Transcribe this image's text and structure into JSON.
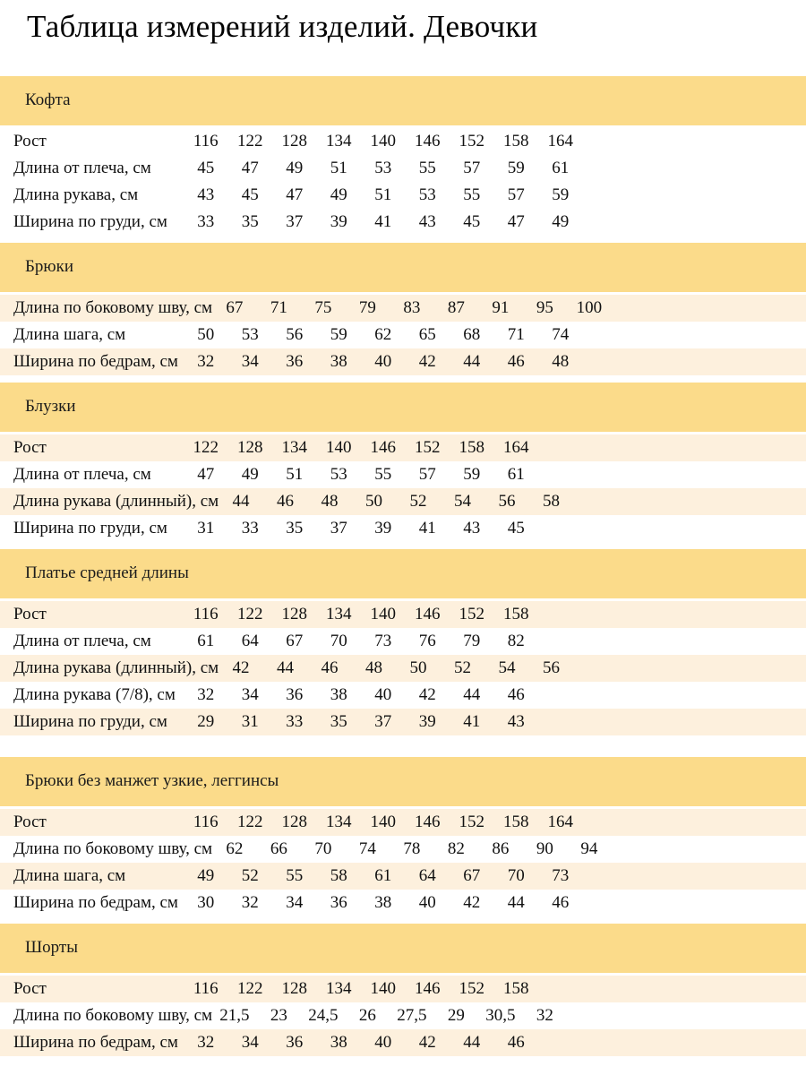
{
  "page_title": "Таблица измерений изделий. Девочки",
  "colors": {
    "section_band": "#FBDB8A",
    "shaded_row": "#FDF0DD",
    "plain_row": "#FFFFFF",
    "text": "#111111"
  },
  "sections": [
    {
      "title": "Кофта",
      "gap_after": false,
      "rows": [
        {
          "label": "Рост",
          "shaded": false,
          "values": [
            "116",
            "122",
            "128",
            "134",
            "140",
            "146",
            "152",
            "158",
            "164"
          ]
        },
        {
          "label": "Длина от плеча, см",
          "shaded": false,
          "values": [
            "45",
            "47",
            "49",
            "51",
            "53",
            "55",
            "57",
            "59",
            "61"
          ]
        },
        {
          "label": "Длина рукава, см",
          "shaded": false,
          "values": [
            "43",
            "45",
            "47",
            "49",
            "51",
            "53",
            "55",
            "57",
            "59"
          ]
        },
        {
          "label": "Ширина по груди, см",
          "shaded": false,
          "values": [
            "33",
            "35",
            "37",
            "39",
            "41",
            "43",
            "45",
            "47",
            "49"
          ]
        }
      ]
    },
    {
      "title": "Брюки",
      "gap_after": false,
      "rows": [
        {
          "label": "Длина по боковому шву, см",
          "shaded": true,
          "values": [
            "67",
            "71",
            "75",
            "79",
            "83",
            "87",
            "91",
            "95",
            "100"
          ]
        },
        {
          "label": "Длина шага, см",
          "shaded": false,
          "values": [
            "50",
            "53",
            "56",
            "59",
            "62",
            "65",
            "68",
            "71",
            "74"
          ]
        },
        {
          "label": "Ширина по бедрам, см",
          "shaded": true,
          "values": [
            "32",
            "34",
            "36",
            "38",
            "40",
            "42",
            "44",
            "46",
            "48"
          ]
        }
      ]
    },
    {
      "title": "Блузки",
      "gap_after": false,
      "rows": [
        {
          "label": "Рост",
          "shaded": true,
          "values": [
            "122",
            "128",
            "134",
            "140",
            "146",
            "152",
            "158",
            "164"
          ]
        },
        {
          "label": "Длина от плеча, см",
          "shaded": false,
          "values": [
            "47",
            "49",
            "51",
            "53",
            "55",
            "57",
            "59",
            "61"
          ]
        },
        {
          "label": "Длина рукава (длинный), см",
          "shaded": true,
          "values": [
            "44",
            "46",
            "48",
            "50",
            "52",
            "54",
            "56",
            "58"
          ]
        },
        {
          "label": "Ширина по груди, см",
          "shaded": false,
          "values": [
            "31",
            "33",
            "35",
            "37",
            "39",
            "41",
            "43",
            "45"
          ]
        }
      ]
    },
    {
      "title": "Платье средней длины",
      "gap_after": true,
      "rows": [
        {
          "label": "Рост",
          "shaded": true,
          "values": [
            "116",
            "122",
            "128",
            "134",
            "140",
            "146",
            "152",
            "158"
          ]
        },
        {
          "label": "Длина от плеча, см",
          "shaded": false,
          "values": [
            "61",
            "64",
            "67",
            "70",
            "73",
            "76",
            "79",
            "82"
          ]
        },
        {
          "label": "Длина рукава (длинный), см",
          "shaded": true,
          "values": [
            "42",
            "44",
            "46",
            "48",
            "50",
            "52",
            "54",
            "56"
          ]
        },
        {
          "label": "Длина рукава (7/8), см",
          "shaded": false,
          "values": [
            "32",
            "34",
            "36",
            "38",
            "40",
            "42",
            "44",
            "46"
          ]
        },
        {
          "label": "Ширина по груди, см",
          "shaded": true,
          "values": [
            "29",
            "31",
            "33",
            "35",
            "37",
            "39",
            "41",
            "43"
          ]
        }
      ]
    },
    {
      "title": "Брюки без манжет узкие, леггинсы",
      "gap_after": false,
      "rows": [
        {
          "label": "Рост",
          "shaded": true,
          "values": [
            "116",
            "122",
            "128",
            "134",
            "140",
            "146",
            "152",
            "158",
            "164"
          ]
        },
        {
          "label": "Длина по боковому шву, см",
          "shaded": false,
          "values": [
            "62",
            "66",
            "70",
            "74",
            "78",
            "82",
            "86",
            "90",
            "94"
          ]
        },
        {
          "label": "Длина шага, см",
          "shaded": true,
          "values": [
            "49",
            "52",
            "55",
            "58",
            "61",
            "64",
            "67",
            "70",
            "73"
          ]
        },
        {
          "label": "Ширина по бедрам, см",
          "shaded": false,
          "values": [
            "30",
            "32",
            "34",
            "36",
            "38",
            "40",
            "42",
            "44",
            "46"
          ]
        }
      ]
    },
    {
      "title": "Шорты",
      "gap_after": false,
      "rows": [
        {
          "label": "Рост",
          "shaded": true,
          "values": [
            "116",
            "122",
            "128",
            "134",
            "140",
            "146",
            "152",
            "158"
          ]
        },
        {
          "label": "Длина по боковому шву, см",
          "shaded": false,
          "values": [
            "21,5",
            "23",
            "24,5",
            "26",
            "27,5",
            "29",
            "30,5",
            "32"
          ]
        },
        {
          "label": "Ширина по бедрам, см",
          "shaded": true,
          "values": [
            "32",
            "34",
            "36",
            "38",
            "40",
            "42",
            "44",
            "46"
          ]
        }
      ]
    }
  ]
}
